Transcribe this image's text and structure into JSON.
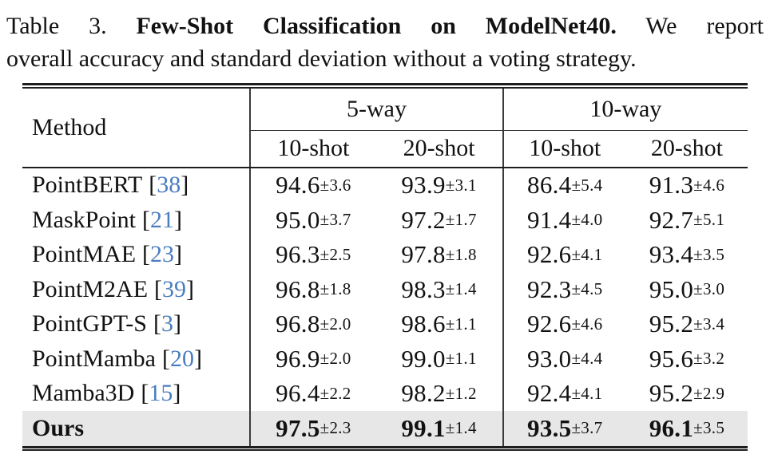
{
  "caption": {
    "prefix": "Table 3.",
    "bold": "Few-Shot Classification on ModelNet40.",
    "suffix": "We report",
    "line2": "overall accuracy and standard deviation without a voting strategy."
  },
  "table": {
    "method_header": "Method",
    "groups": [
      {
        "label": "5-way"
      },
      {
        "label": "10-way"
      }
    ],
    "shot_headers": [
      "10-shot",
      "20-shot",
      "10-shot",
      "20-shot"
    ],
    "bracket_open": "[",
    "bracket_close": "]",
    "rows": [
      {
        "name": "PointBERT",
        "cite": "38",
        "cells": [
          {
            "val": "94.6",
            "err": "±3.6"
          },
          {
            "val": "93.9",
            "err": "±3.1"
          },
          {
            "val": "86.4",
            "err": "±5.4"
          },
          {
            "val": "91.3",
            "err": "±4.6"
          }
        ]
      },
      {
        "name": "MaskPoint",
        "cite": "21",
        "cells": [
          {
            "val": "95.0",
            "err": "±3.7"
          },
          {
            "val": "97.2",
            "err": "±1.7"
          },
          {
            "val": "91.4",
            "err": "±4.0"
          },
          {
            "val": "92.7",
            "err": "±5.1"
          }
        ]
      },
      {
        "name": "PointMAE",
        "cite": "23",
        "cells": [
          {
            "val": "96.3",
            "err": "±2.5"
          },
          {
            "val": "97.8",
            "err": "±1.8"
          },
          {
            "val": "92.6",
            "err": "±4.1"
          },
          {
            "val": "93.4",
            "err": "±3.5"
          }
        ]
      },
      {
        "name": "PointM2AE",
        "cite": "39",
        "cells": [
          {
            "val": "96.8",
            "err": "±1.8"
          },
          {
            "val": "98.3",
            "err": "±1.4"
          },
          {
            "val": "92.3",
            "err": "±4.5"
          },
          {
            "val": "95.0",
            "err": "±3.0"
          }
        ]
      },
      {
        "name": "PointGPT-S",
        "cite": "3",
        "cells": [
          {
            "val": "96.8",
            "err": "±2.0"
          },
          {
            "val": "98.6",
            "err": "±1.1"
          },
          {
            "val": "92.6",
            "err": "±4.6"
          },
          {
            "val": "95.2",
            "err": "±3.4"
          }
        ]
      },
      {
        "name": "PointMamba",
        "cite": "20",
        "cells": [
          {
            "val": "96.9",
            "err": "±2.0"
          },
          {
            "val": "99.0",
            "err": "±1.1"
          },
          {
            "val": "93.0",
            "err": "±4.4"
          },
          {
            "val": "95.6",
            "err": "±3.2"
          }
        ]
      },
      {
        "name": "Mamba3D",
        "cite": "15",
        "cells": [
          {
            "val": "96.4",
            "err": "±2.2"
          },
          {
            "val": "98.2",
            "err": "±1.2"
          },
          {
            "val": "92.4",
            "err": "±4.1"
          },
          {
            "val": "95.2",
            "err": "±2.9"
          }
        ]
      },
      {
        "name": "Ours",
        "cite": "",
        "cells": [
          {
            "val": "97.5",
            "err": "±2.3"
          },
          {
            "val": "99.1",
            "err": "±1.4"
          },
          {
            "val": "93.5",
            "err": "±3.7"
          },
          {
            "val": "96.1",
            "err": "±3.5"
          }
        ]
      }
    ]
  },
  "colors": {
    "citation_blue": "#4a7ebf",
    "highlight_row": "#e7e7e7",
    "rule": "#1d1d1d"
  }
}
